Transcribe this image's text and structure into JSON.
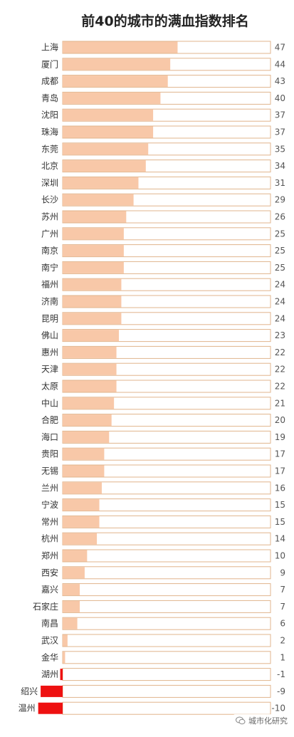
{
  "chart_data": {
    "type": "bar",
    "orientation": "horizontal",
    "title": "前40的城市的满血指数排名",
    "categories": [
      "上海",
      "厦门",
      "成都",
      "青岛",
      "沈阳",
      "珠海",
      "东莞",
      "北京",
      "深圳",
      "长沙",
      "苏州",
      "广州",
      "南京",
      "南宁",
      "福州",
      "济南",
      "昆明",
      "佛山",
      "惠州",
      "天津",
      "太原",
      "中山",
      "合肥",
      "海口",
      "贵阳",
      "无锡",
      "兰州",
      "宁波",
      "常州",
      "杭州",
      "郑州",
      "西安",
      "嘉兴",
      "石家庄",
      "南昌",
      "武汉",
      "金华",
      "湖州",
      "绍兴",
      "温州"
    ],
    "values": [
      47,
      44,
      43,
      40,
      37,
      37,
      35,
      34,
      31,
      29,
      26,
      25,
      25,
      25,
      24,
      24,
      24,
      23,
      22,
      22,
      22,
      21,
      20,
      19,
      17,
      17,
      16,
      15,
      15,
      14,
      10,
      9,
      7,
      7,
      6,
      2,
      1,
      -1,
      -9,
      -10
    ],
    "xlim": [
      -15,
      85
    ],
    "grid": false,
    "legend": "none",
    "colors": {
      "positive": "#f8c8a8",
      "negative": "#ee1111",
      "track_border": "#e0b48c"
    }
  },
  "watermark": {
    "text": "城市化研究"
  }
}
